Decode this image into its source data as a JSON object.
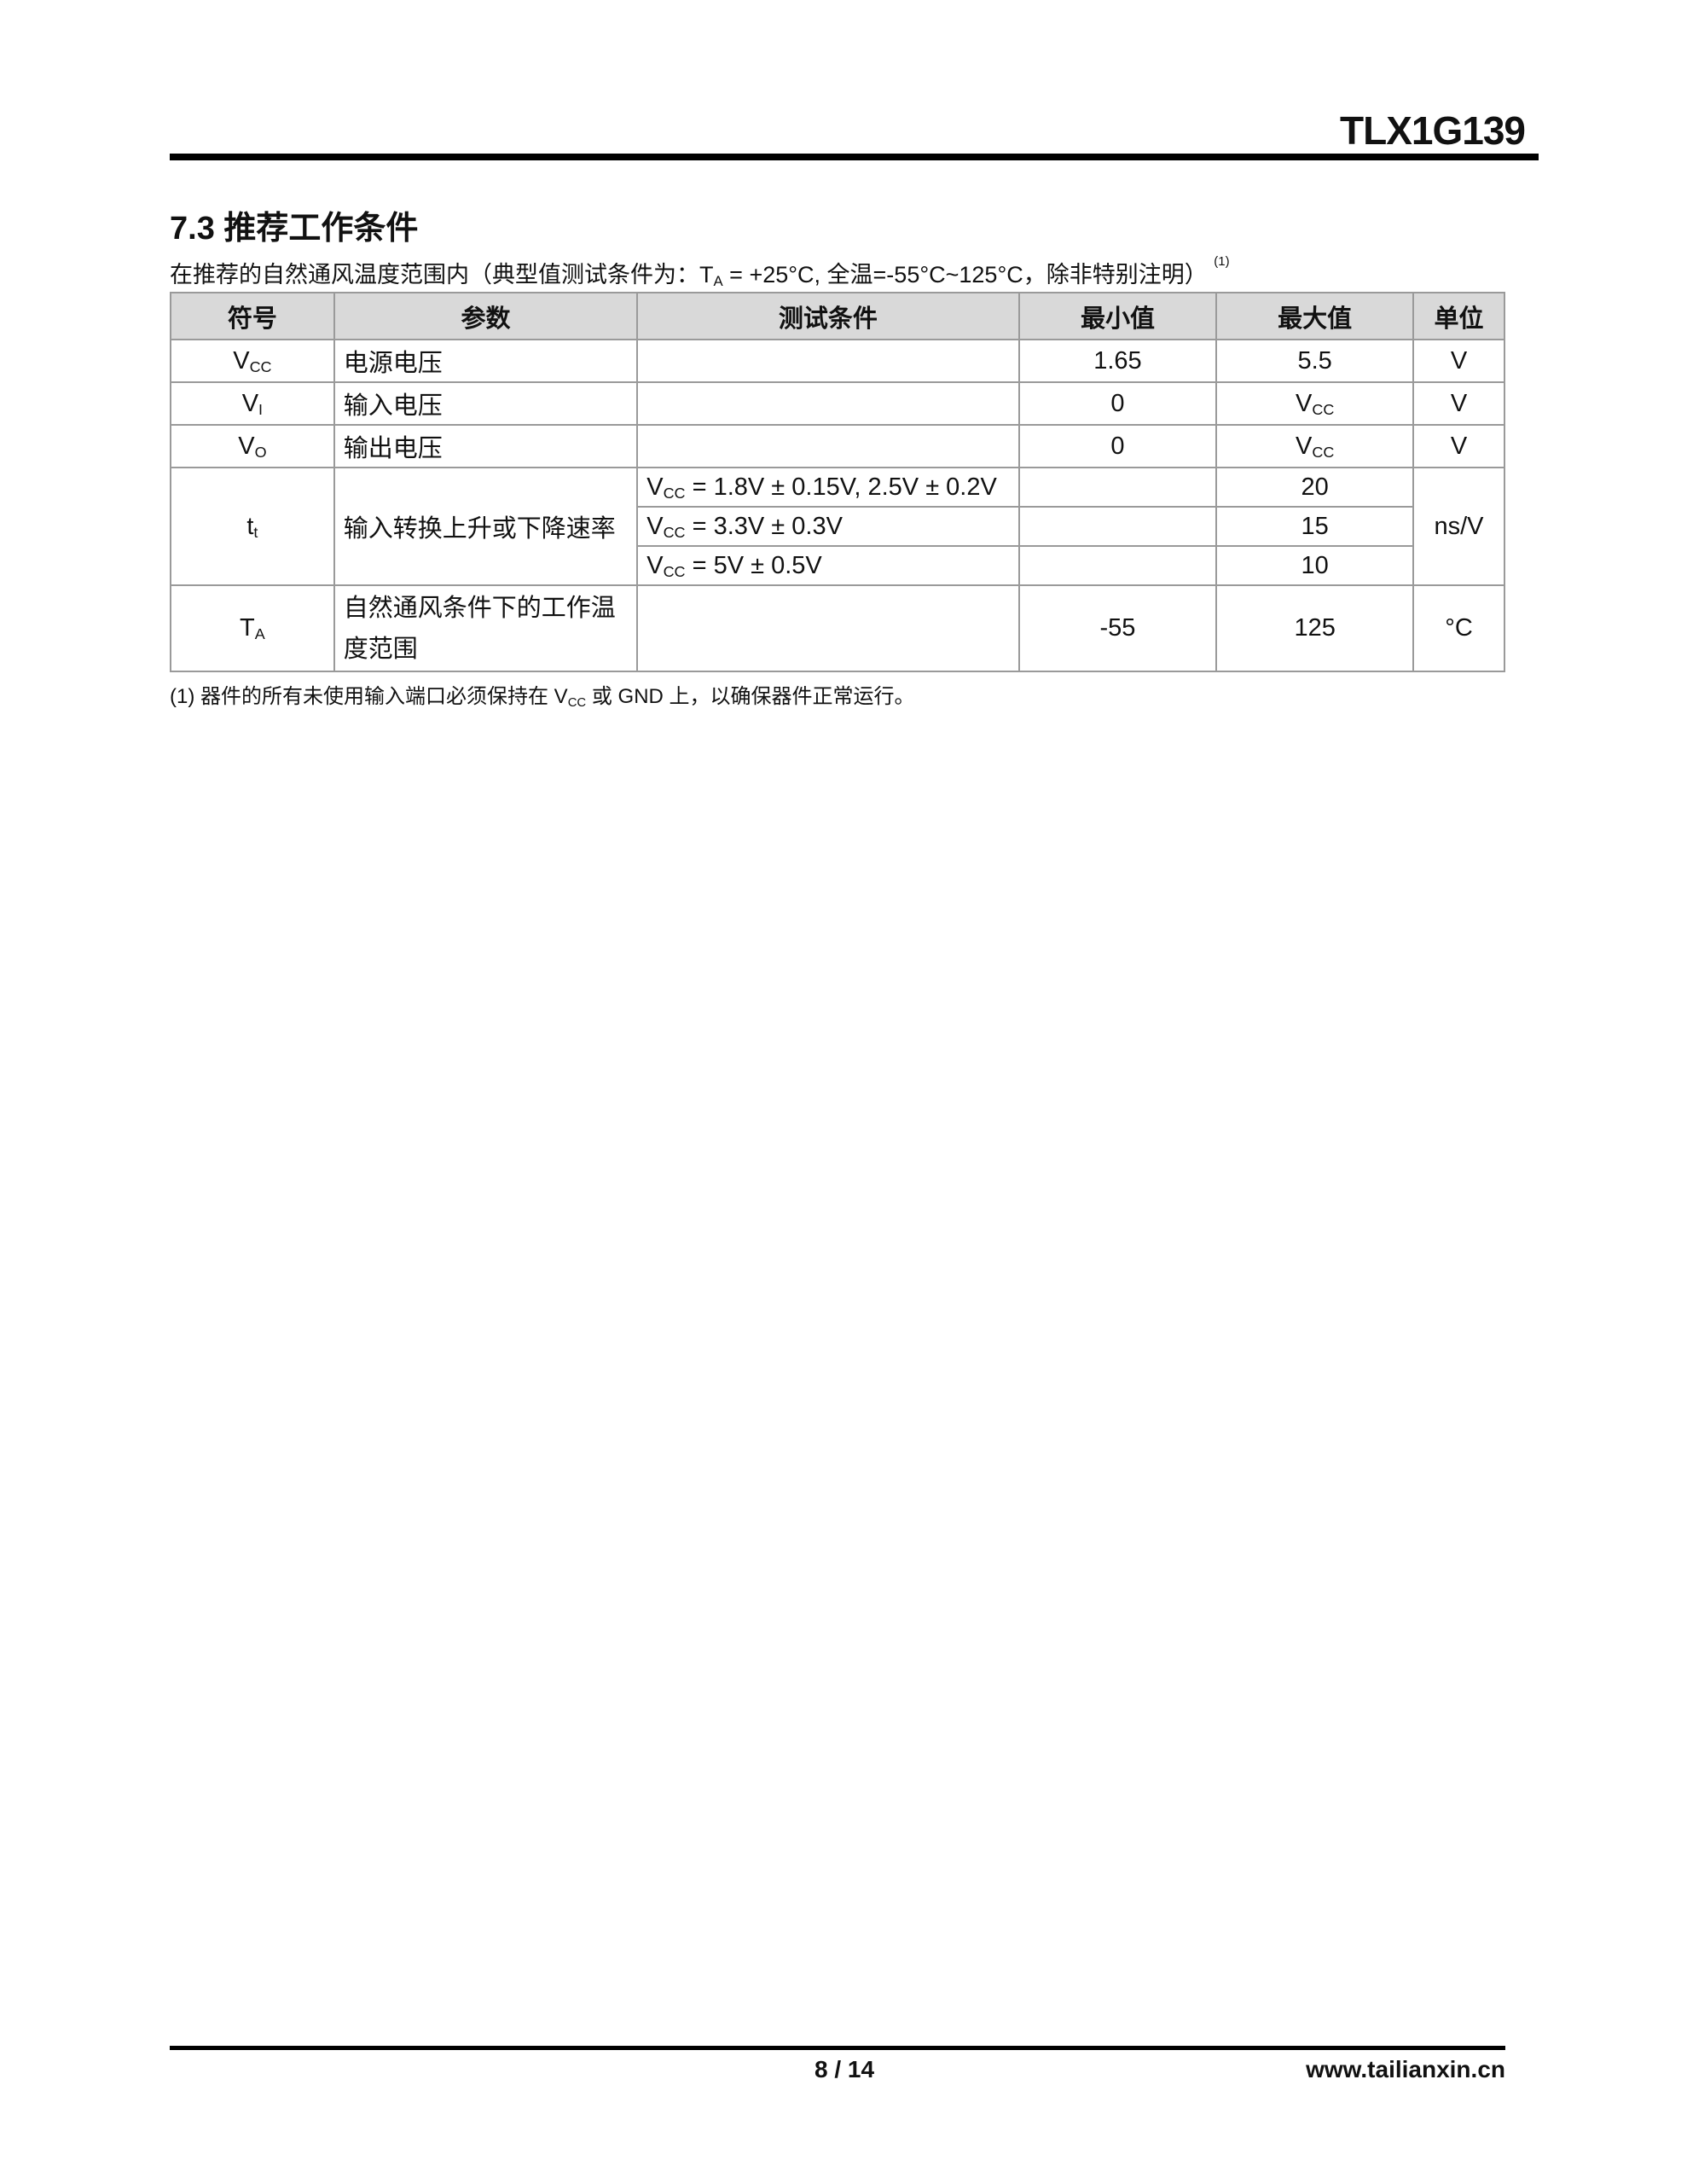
{
  "header": {
    "doc_title": "TLX1G139"
  },
  "section": {
    "title": "7.3 推荐工作条件",
    "subtitle_pre": "在推荐的自然通风温度范围内（典型值测试条件为：T",
    "subtitle_sub": "A",
    "subtitle_post": " = +25°C, 全温=-55°C~125°C，除非特别注明）",
    "subtitle_note": "(1)"
  },
  "table": {
    "headers": [
      "符号",
      "参数",
      "测试条件",
      "最小值",
      "最大值",
      "单位"
    ],
    "rows": [
      {
        "sym": "V",
        "sym_sub": "CC",
        "param": "电源电压",
        "min": "1.65",
        "max": "5.5",
        "unit": "V"
      },
      {
        "sym": "V",
        "sym_sub": "I",
        "param": "输入电压",
        "min": "0",
        "max_base": "V",
        "max_sub": "CC",
        "unit": "V"
      },
      {
        "sym": "V",
        "sym_sub": "O",
        "param": "输出电压",
        "min": "0",
        "max_base": "V",
        "max_sub": "CC",
        "unit": "V"
      },
      {
        "sym": "t",
        "sym_sub": "t",
        "param": "输入转换上升或下降速率",
        "unit": "ns/V",
        "conditions": [
          {
            "base": "V",
            "sub": "CC",
            "text": " = 1.8V ± 0.15V, 2.5V ± 0.2V",
            "max": "20"
          },
          {
            "base": "V",
            "sub": "CC",
            "text": " = 3.3V ± 0.3V",
            "max": "15"
          },
          {
            "base": "V",
            "sub": "CC",
            "text": " = 5V ± 0.5V",
            "max": "10"
          }
        ]
      },
      {
        "sym": "T",
        "sym_sub": "A",
        "param": "自然通风条件下的工作温度范围",
        "min": "-55",
        "max": "125",
        "unit": "°C"
      }
    ]
  },
  "footnote": {
    "pre": "(1) 器件的所有未使用输入端口必须保持在 V",
    "sub": "CC",
    "post": " 或 GND 上，以确保器件正常运行。"
  },
  "footer": {
    "page": "8 / 14",
    "website": "www.tailianxin.cn"
  }
}
